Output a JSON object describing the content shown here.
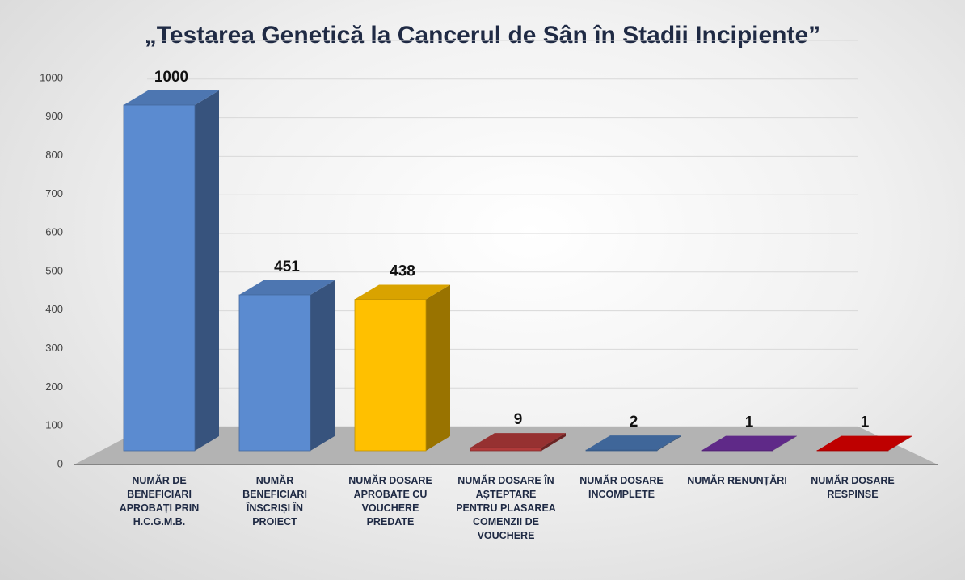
{
  "chart_data": {
    "type": "bar3d",
    "title": "„Testarea Genetică la Cancerul de Sân în Stadii Incipiente”",
    "categories": [
      "NUMĂR DE BENEFICIARI APROBAȚI PRIN H.C.G.M.B.",
      "NUMĂR BENEFICIARI ÎNSCRIȘI ÎN PROIECT",
      "NUMĂR DOSARE APROBATE CU VOUCHERE PREDATE",
      "NUMĂR DOSARE ÎN AȘTEPTARE PENTRU PLASAREA COMENZII DE VOUCHERE",
      "NUMĂR DOSARE INCOMPLETE",
      "NUMĂR RENUNȚĂRI",
      "NUMĂR DOSARE RESPINSE"
    ],
    "values": [
      1000,
      451,
      438,
      9,
      2,
      1,
      1
    ],
    "colors": [
      "#5b8bd0",
      "#5b8bd0",
      "#ffc000",
      "#b03a3a",
      "#4a78b4",
      "#7030a0",
      "#e00000"
    ],
    "ylim": [
      0,
      1000
    ],
    "yticks": [
      0,
      100,
      200,
      300,
      400,
      500,
      600,
      700,
      800,
      900,
      1000
    ],
    "grid": true
  }
}
